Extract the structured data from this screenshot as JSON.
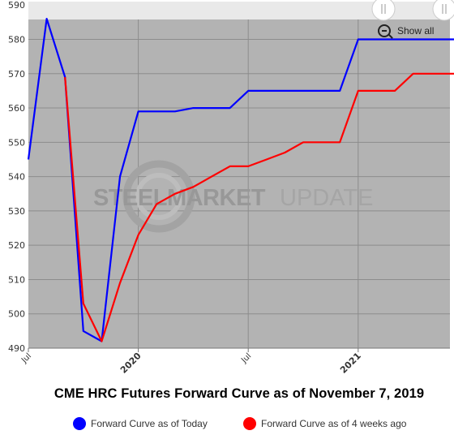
{
  "chart_data": {
    "type": "line",
    "title": "CME HRC Futures Forward Curve as of November 7, 2019",
    "y_ticks": [
      "490",
      "500",
      "510",
      "520",
      "530",
      "540",
      "550",
      "560",
      "570",
      "580",
      "590"
    ],
    "ylim": [
      490,
      591
    ],
    "x_ticks": [
      {
        "label": "Jul",
        "bold": false,
        "month": 0
      },
      {
        "label": "2020",
        "bold": true,
        "month": 6
      },
      {
        "label": "Jul",
        "bold": false,
        "month": 12
      },
      {
        "label": "2021",
        "bold": true,
        "month": 18
      }
    ],
    "xlim": [
      0,
      23.3
    ],
    "grid": true,
    "legend_position": "bottom",
    "watermark": "STEELMARKET UPDATE",
    "series": [
      {
        "name": "Forward Curve as of Today",
        "color": "#0000ff",
        "points": [
          [
            0,
            545
          ],
          [
            1,
            586
          ],
          [
            2,
            569
          ],
          [
            3,
            495
          ],
          [
            4,
            492
          ],
          [
            5,
            540
          ],
          [
            6,
            559
          ],
          [
            7,
            559
          ],
          [
            8,
            559
          ],
          [
            9,
            560
          ],
          [
            10,
            560
          ],
          [
            11,
            560
          ],
          [
            12,
            565
          ],
          [
            13,
            565
          ],
          [
            14,
            565
          ],
          [
            15,
            565
          ],
          [
            16,
            565
          ],
          [
            17,
            565
          ],
          [
            18,
            580
          ],
          [
            19,
            580
          ],
          [
            20,
            580
          ],
          [
            21,
            580
          ],
          [
            22,
            580
          ],
          [
            23.3,
            580
          ]
        ]
      },
      {
        "name": "Forward Curve as of 4 weeks ago",
        "color": "#ff0000",
        "points": [
          [
            2,
            569
          ],
          [
            3,
            503
          ],
          [
            4,
            492
          ],
          [
            5,
            509
          ],
          [
            6,
            523
          ],
          [
            7,
            532
          ],
          [
            8,
            535
          ],
          [
            9,
            537
          ],
          [
            10,
            540
          ],
          [
            11,
            543
          ],
          [
            12,
            543
          ],
          [
            13,
            545
          ],
          [
            14,
            547
          ],
          [
            15,
            550
          ],
          [
            16,
            550
          ],
          [
            17,
            550
          ],
          [
            18,
            565
          ],
          [
            19,
            565
          ],
          [
            20,
            565
          ],
          [
            21,
            570
          ],
          [
            22,
            570
          ],
          [
            23.3,
            570
          ]
        ]
      }
    ]
  },
  "controls": {
    "show_all_label": "Show all",
    "slider_handle_icon": "grip-lines-icon"
  }
}
